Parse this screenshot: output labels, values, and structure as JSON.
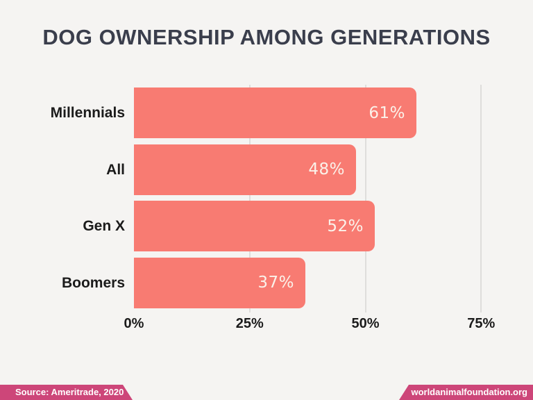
{
  "title": "DOG OWNERSHIP AMONG GENERATIONS",
  "chart_data": {
    "type": "bar",
    "orientation": "horizontal",
    "title": "DOG OWNERSHIP AMONG GENERATIONS",
    "categories": [
      "Millennials",
      "All",
      "Gen X",
      "Boomers"
    ],
    "values": [
      61,
      48,
      52,
      37
    ],
    "value_labels": [
      "61%",
      "48%",
      "52%",
      "37%"
    ],
    "x_ticks": [
      {
        "value": 0,
        "label": "0%"
      },
      {
        "value": 25,
        "label": "25%"
      },
      {
        "value": 50,
        "label": "50%"
      },
      {
        "value": 75,
        "label": "75%"
      }
    ],
    "xlim": [
      0,
      79
    ],
    "grid": "vertical gridlines at 25/50/75, none at 0",
    "legend": "none",
    "value_label_position": "inside-end"
  },
  "footer": {
    "source": "Source: Ameritrade, 2020",
    "website": "worldanimalfoundation.org"
  },
  "colors": {
    "background": "#f5f4f2",
    "bar": "#f87b72",
    "title_text": "#3a3e4c",
    "axis_text": "#1b1b1b",
    "value_text": "#fbf2ea",
    "gridline": "#dedddb",
    "banner": "#cd4679",
    "banner_text": "#ffffff"
  }
}
